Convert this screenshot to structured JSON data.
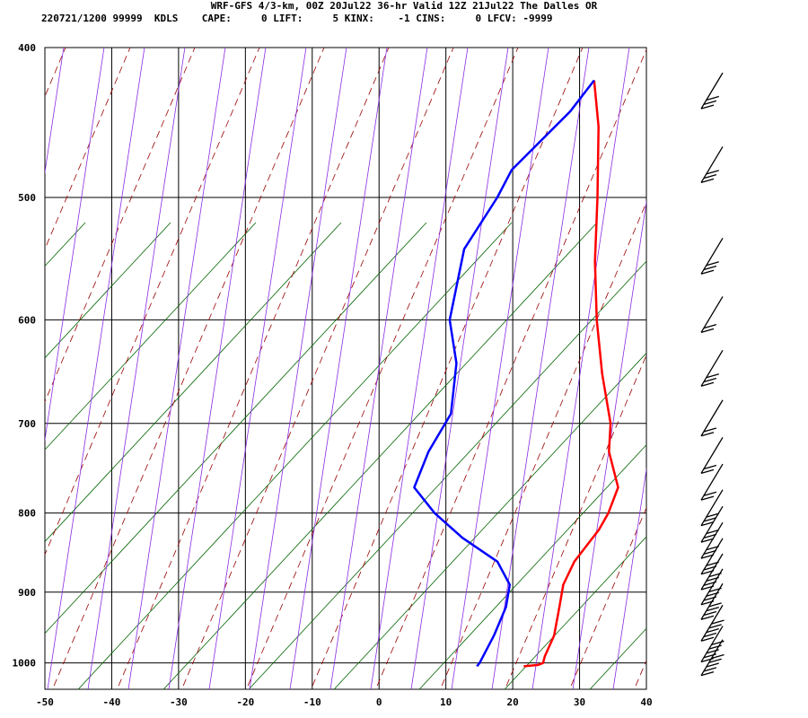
{
  "header": {
    "title": "WRF-GFS 4/3-km, 00Z 20Jul22 36-hr Valid 12Z 21Jul22 The Dalles OR",
    "info": "220721/1200 99999  KDLS    CAPE:     0 LIFT:     5 KINX:    -1 CINS:     0 LFCV: -9999"
  },
  "chart_data": {
    "type": "skew-t sounding",
    "title": "WRF-GFS 4/3-km, 00Z 20Jul22 36-hr Valid 12Z 21Jul22 The Dalles OR",
    "x_axis": {
      "ticks": [
        -50,
        -40,
        -30,
        -20,
        -10,
        0,
        10,
        20,
        30,
        40
      ],
      "range": [
        -50,
        40
      ]
    },
    "y_axis": {
      "ticks": [
        400,
        500,
        600,
        700,
        800,
        900,
        1000
      ],
      "range": [
        400,
        1040
      ],
      "scale": "log-pressure"
    },
    "grid": true,
    "colors": {
      "temperature": "#ff0000",
      "dewpoint": "#0000ff",
      "dry_adiabat": "#990000",
      "moist_adiabat": "#8a2be2",
      "mixing_ratio": "#006400",
      "wind_barb": "#000000"
    },
    "series": [
      {
        "name": "Temperature",
        "points": [
          [
            1005,
            19
          ],
          [
            1003,
            21
          ],
          [
            1000,
            21.5
          ],
          [
            990,
            21
          ],
          [
            960,
            20
          ],
          [
            920,
            17.5
          ],
          [
            890,
            15.5
          ],
          [
            860,
            14.5
          ],
          [
            820,
            14.5
          ],
          [
            800,
            14
          ],
          [
            770,
            12.5
          ],
          [
            730,
            7
          ],
          [
            700,
            4
          ],
          [
            650,
            -3
          ],
          [
            600,
            -10
          ],
          [
            550,
            -17
          ],
          [
            500,
            -24
          ],
          [
            450,
            -32
          ],
          [
            420,
            -38
          ]
        ]
      },
      {
        "name": "Dewpoint",
        "points": [
          [
            1005,
            12
          ],
          [
            1000,
            12
          ],
          [
            960,
            11
          ],
          [
            920,
            9.5
          ],
          [
            890,
            7.5
          ],
          [
            860,
            3
          ],
          [
            830,
            -5
          ],
          [
            800,
            -12
          ],
          [
            770,
            -18
          ],
          [
            730,
            -20
          ],
          [
            690,
            -21
          ],
          [
            640,
            -26
          ],
          [
            600,
            -32
          ],
          [
            540,
            -38
          ],
          [
            500,
            -39
          ],
          [
            480,
            -40
          ],
          [
            440,
            -38
          ],
          [
            420,
            -38
          ]
        ]
      }
    ],
    "wind_barbs": [
      {
        "p": 1000,
        "kt": 50
      },
      {
        "p": 980,
        "kt": 50
      },
      {
        "p": 950,
        "kt": 45
      },
      {
        "p": 920,
        "kt": 40
      },
      {
        "p": 900,
        "kt": 35
      },
      {
        "p": 880,
        "kt": 35
      },
      {
        "p": 860,
        "kt": 30
      },
      {
        "p": 840,
        "kt": 30
      },
      {
        "p": 820,
        "kt": 30
      },
      {
        "p": 800,
        "kt": 25
      },
      {
        "p": 770,
        "kt": 20
      },
      {
        "p": 740,
        "kt": 20
      },
      {
        "p": 700,
        "kt": 20
      },
      {
        "p": 650,
        "kt": 25
      },
      {
        "p": 600,
        "kt": 20
      },
      {
        "p": 550,
        "kt": 25
      },
      {
        "p": 480,
        "kt": 30
      },
      {
        "p": 430,
        "kt": 30
      }
    ]
  }
}
